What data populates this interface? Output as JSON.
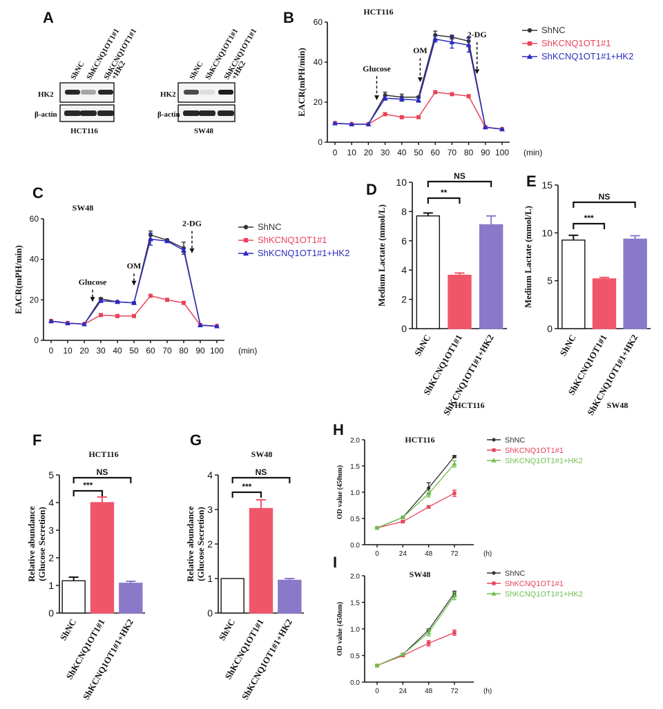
{
  "panels": {
    "A": "A",
    "B": "B",
    "C": "C",
    "D": "D",
    "E": "E",
    "F": "F",
    "G": "G",
    "H": "H",
    "I": "I"
  },
  "colors": {
    "shnc": "#333333",
    "shk": "#e8435a",
    "shk_hk2": "#2b2bbf",
    "bar_red": "#f0566a",
    "bar_purple": "#8a79c9",
    "green": "#6dbf4e"
  },
  "western_blot": {
    "lanes": [
      "ShNC",
      "ShKCNQ1OT1#1",
      "ShKCNQ1OT1#1 +HK2"
    ],
    "rows": [
      "HK2",
      "β-actin"
    ],
    "blots": [
      {
        "cell_line": "HCT116",
        "hk2_band_intensity": [
          0.9,
          0.35,
          0.9
        ],
        "actin_band_intensity": [
          0.9,
          0.9,
          0.9
        ]
      },
      {
        "cell_line": "SW48",
        "hk2_band_intensity": [
          0.75,
          0.1,
          0.95
        ],
        "actin_band_intensity": [
          0.9,
          0.9,
          0.9
        ]
      }
    ]
  },
  "chart_data": [
    {
      "id": "B",
      "type": "line",
      "title": "HCT116",
      "ylabel": "EACR(mPH/min)",
      "xlabel": "(min)",
      "ylim": [
        0,
        60
      ],
      "yticks": [
        0,
        20,
        40,
        60
      ],
      "xlim": [
        0,
        100
      ],
      "xticks": [
        0,
        10,
        20,
        30,
        40,
        50,
        60,
        70,
        80,
        90,
        100
      ],
      "x": [
        0,
        10,
        20,
        30,
        40,
        50,
        60,
        70,
        80,
        90,
        100
      ],
      "series": [
        {
          "name": "ShNC",
          "values": [
            9.5,
            9.0,
            9.0,
            23.5,
            22.5,
            22.5,
            53.5,
            52.5,
            50.5,
            7.5,
            6.5
          ],
          "err": [
            0,
            0,
            0,
            1.5,
            1.5,
            0.5,
            2,
            1,
            2,
            0,
            0
          ]
        },
        {
          "name": "ShKCNQ1OT1#1",
          "values": [
            9.5,
            9.0,
            9.0,
            14.0,
            12.5,
            12.5,
            25.0,
            24.0,
            23.0,
            7.5,
            6.5
          ],
          "err": [
            0,
            0,
            0,
            0,
            0,
            0,
            0,
            0,
            0,
            0,
            0
          ]
        },
        {
          "name": "ShKCNQ1OT1#1+HK2",
          "values": [
            9.5,
            9.0,
            9.0,
            22.0,
            21.5,
            21.0,
            51.5,
            50.0,
            48.5,
            7.5,
            6.5
          ],
          "err": [
            0,
            0,
            0,
            1,
            1,
            1,
            1.5,
            3,
            3.5,
            0,
            0
          ]
        }
      ],
      "annotations": [
        {
          "label": "Glucose",
          "x": 25,
          "y_top": 33,
          "y_tip": 21
        },
        {
          "label": "OM",
          "x": 51,
          "y_top": 42,
          "y_tip": 30
        },
        {
          "label": "2-DG",
          "x": 85,
          "y_top": 50,
          "y_tip": 34
        }
      ]
    },
    {
      "id": "C",
      "type": "line",
      "title": "SW48",
      "ylabel": "EACR(mPH/min)",
      "xlabel": "(min)",
      "ylim": [
        0,
        60
      ],
      "yticks": [
        0,
        20,
        40,
        60
      ],
      "xlim": [
        0,
        100
      ],
      "xticks": [
        0,
        10,
        20,
        30,
        40,
        50,
        60,
        70,
        80,
        90,
        100
      ],
      "x": [
        0,
        10,
        20,
        30,
        40,
        50,
        60,
        70,
        80,
        90,
        100
      ],
      "series": [
        {
          "name": "ShNC",
          "values": [
            9.5,
            8.5,
            8.0,
            20.5,
            19.0,
            18.5,
            52.0,
            49.5,
            45.5,
            7.5,
            7.0
          ],
          "err": [
            0,
            0,
            0,
            0.5,
            0.5,
            0.5,
            2,
            0.5,
            3,
            0,
            0
          ]
        },
        {
          "name": "ShKCNQ1OT1#1",
          "values": [
            9.5,
            8.5,
            8.0,
            12.5,
            12.0,
            12.0,
            22.0,
            20.0,
            18.5,
            7.5,
            7.0
          ],
          "err": [
            0,
            0,
            0,
            0,
            0,
            0,
            0,
            0,
            0,
            0,
            0
          ]
        },
        {
          "name": "ShKCNQ1OT1#1+HK2",
          "values": [
            9.5,
            8.5,
            8.0,
            19.5,
            19.0,
            18.5,
            50.0,
            49.0,
            44.5,
            7.5,
            7.0
          ],
          "err": [
            0,
            0,
            0,
            0.5,
            0.5,
            0.5,
            3,
            0.5,
            1,
            0,
            0
          ]
        }
      ],
      "annotations": [
        {
          "label": "Glucose",
          "x": 25,
          "y_top": 25,
          "y_tip": 19
        },
        {
          "label": "OM",
          "x": 50,
          "y_top": 33,
          "y_tip": 27
        },
        {
          "label": "2-DG",
          "x": 85,
          "y_top": 54,
          "y_tip": 43
        }
      ]
    },
    {
      "id": "D",
      "type": "bar",
      "title": "HCT116",
      "ylabel": "Medium Lactate (mmol/L)",
      "ylim": [
        0,
        10
      ],
      "yticks": [
        0,
        2,
        4,
        6,
        8,
        10
      ],
      "categories": [
        "ShNC",
        "ShKCNQ1OT1#1",
        "ShKCNQ1OT1#1+HK2"
      ],
      "values": [
        7.7,
        3.65,
        7.1
      ],
      "err": [
        0.2,
        0.15,
        0.6
      ],
      "significance": [
        {
          "from": 0,
          "to": 1,
          "label": "**"
        },
        {
          "from": 0,
          "to": 2,
          "label": "NS"
        }
      ]
    },
    {
      "id": "E",
      "type": "bar",
      "title": "SW48",
      "ylabel": "Medium Lactate (mmol/L)",
      "ylim": [
        0,
        15
      ],
      "yticks": [
        0,
        5,
        10,
        15
      ],
      "categories": [
        "ShNC",
        "ShKCNQ1OT1#1",
        "ShKCNQ1OT1#1+HK2"
      ],
      "values": [
        9.25,
        5.2,
        9.35
      ],
      "err": [
        0.5,
        0.15,
        0.35
      ],
      "significance": [
        {
          "from": 0,
          "to": 1,
          "label": "***"
        },
        {
          "from": 0,
          "to": 2,
          "label": "NS"
        }
      ]
    },
    {
      "id": "F",
      "type": "bar",
      "title": "HCT116",
      "ylabel": "Relative abundance (Glucose Secretion)",
      "ylim": [
        0,
        5
      ],
      "yticks": [
        0,
        1,
        2,
        3,
        4,
        5
      ],
      "categories": [
        "ShNC",
        "ShKCNQ1OT1#1",
        "ShKCNQ1OT1#1+HK2"
      ],
      "values": [
        1.17,
        4.0,
        1.08
      ],
      "err": [
        0.13,
        0.2,
        0.07
      ],
      "significance": [
        {
          "from": 0,
          "to": 1,
          "label": "***"
        },
        {
          "from": 0,
          "to": 2,
          "label": "NS"
        }
      ]
    },
    {
      "id": "G",
      "type": "bar",
      "title": "SW48",
      "ylabel": "Relative abundance (Glucose Secretion)",
      "ylim": [
        0,
        4
      ],
      "yticks": [
        0,
        1,
        2,
        3,
        4
      ],
      "categories": [
        "ShNC",
        "ShKCNQ1OT1#1",
        "ShKCNQ1OT1#1+HK2"
      ],
      "values": [
        1.0,
        3.03,
        0.95
      ],
      "err": [
        0,
        0.25,
        0.05
      ],
      "significance": [
        {
          "from": 0,
          "to": 1,
          "label": "***"
        },
        {
          "from": 0,
          "to": 2,
          "label": "NS"
        }
      ]
    },
    {
      "id": "H",
      "type": "line",
      "title": "HCT116",
      "ylabel": "OD value (450nm)",
      "xlabel": "(h)",
      "ylim": [
        0,
        2.0
      ],
      "yticks": [
        0.0,
        0.5,
        1.0,
        1.5,
        2.0
      ],
      "x": [
        0,
        24,
        48,
        72
      ],
      "xticks": [
        0,
        24,
        48,
        72
      ],
      "series": [
        {
          "name": "ShNC",
          "values": [
            0.32,
            0.52,
            1.08,
            1.68
          ],
          "err": [
            0.02,
            0.02,
            0.1,
            0.02
          ]
        },
        {
          "name": "ShKCNQ1OT1#1",
          "values": [
            0.32,
            0.44,
            0.72,
            0.98
          ],
          "err": [
            0.02,
            0.02,
            0.02,
            0.06
          ]
        },
        {
          "name": "ShKCNQ1OT1#1+HK2",
          "values": [
            0.32,
            0.52,
            0.97,
            1.54
          ],
          "err": [
            0.02,
            0.02,
            0.06,
            0.06
          ]
        }
      ]
    },
    {
      "id": "I",
      "type": "line",
      "title": "SW48",
      "ylabel": "OD value (450nm)",
      "xlabel": "(h)",
      "ylim": [
        0,
        2.0
      ],
      "yticks": [
        0.0,
        0.5,
        1.0,
        1.5,
        2.0
      ],
      "x": [
        0,
        24,
        48,
        72
      ],
      "xticks": [
        0,
        24,
        48,
        72
      ],
      "series": [
        {
          "name": "ShNC",
          "values": [
            0.31,
            0.52,
            0.98,
            1.67
          ],
          "err": [
            0.02,
            0.02,
            0.02,
            0.04
          ]
        },
        {
          "name": "ShKCNQ1OT1#1",
          "values": [
            0.31,
            0.5,
            0.73,
            0.93
          ],
          "err": [
            0.02,
            0.02,
            0.05,
            0.05
          ]
        },
        {
          "name": "ShKCNQ1OT1#1+HK2",
          "values": [
            0.31,
            0.52,
            0.93,
            1.62
          ],
          "err": [
            0.02,
            0.02,
            0.06,
            0.07
          ]
        }
      ]
    }
  ]
}
